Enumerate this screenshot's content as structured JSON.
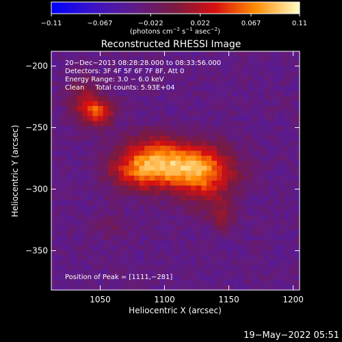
{
  "chart_data": {
    "type": "heatmap",
    "title": "Reconstructed RHESSI Image",
    "xlabel": "Heliocentric X (arcsec)",
    "ylabel": "Heliocentric Y (arcsec)",
    "xlim": [
      1012,
      1205
    ],
    "ylim": [
      -382,
      -188
    ],
    "x_ticks": [
      1050,
      1100,
      1150,
      1200
    ],
    "x_tick_labels": [
      "1050",
      "1100",
      "1150",
      "1200"
    ],
    "y_ticks": [
      -200,
      -250,
      -300,
      -350
    ],
    "y_tick_labels": [
      "−200",
      "−250",
      "−300",
      "−350"
    ],
    "colorbar": {
      "min": -0.11,
      "max": 0.11,
      "tick_values": [
        -0.11,
        -0.067,
        -0.022,
        0.022,
        0.067,
        0.11
      ],
      "tick_labels": [
        "−0.11",
        "−0.067",
        "−0.022",
        "0.022",
        "0.067",
        "0.11"
      ],
      "units_prefix": "(photons cm",
      "units_exp1": "−2",
      "units_mid1": " s",
      "units_exp2": "−1",
      "units_mid2": " asec",
      "units_exp3": "−2",
      "units_suffix": ")"
    },
    "annotations": [
      "20−Dec−2013 08:28:28.000 to 08:33:56.000",
      "Detectors: 3F 4F 5F 6F 7F 8F, Att 0",
      "Energy Range: 3.0 − 6.0 keV",
      "Clean     Total counts: 5.93E+04"
    ],
    "peak_label": "Position of Peak = [1111,−281]",
    "peak": [
      1111,
      -281
    ],
    "sources": [
      {
        "x": 1108,
        "y": -281,
        "sx": 26,
        "sy": 13,
        "amp": 0.1
      },
      {
        "x": 1078,
        "y": -285,
        "sx": 16,
        "sy": 11,
        "amp": 0.05
      },
      {
        "x": 1132,
        "y": -292,
        "sx": 16,
        "sy": 16,
        "amp": 0.055
      },
      {
        "x": 1090,
        "y": -266,
        "sx": 14,
        "sy": 10,
        "amp": 0.03
      },
      {
        "x": 1048,
        "y": -238,
        "sx": 9,
        "sy": 8,
        "amp": 0.085
      },
      {
        "x": 1036,
        "y": -224,
        "sx": 9,
        "sy": 11,
        "amp": 0.04
      },
      {
        "x": 1145,
        "y": -322,
        "sx": 7,
        "sy": 9,
        "amp": 0.035
      },
      {
        "x": 1060,
        "y": -330,
        "sx": 9,
        "sy": 7,
        "amp": 0.02
      }
    ],
    "background_level": -0.034
  },
  "footer": {
    "timestamp": "19−May−2022 05:51"
  }
}
